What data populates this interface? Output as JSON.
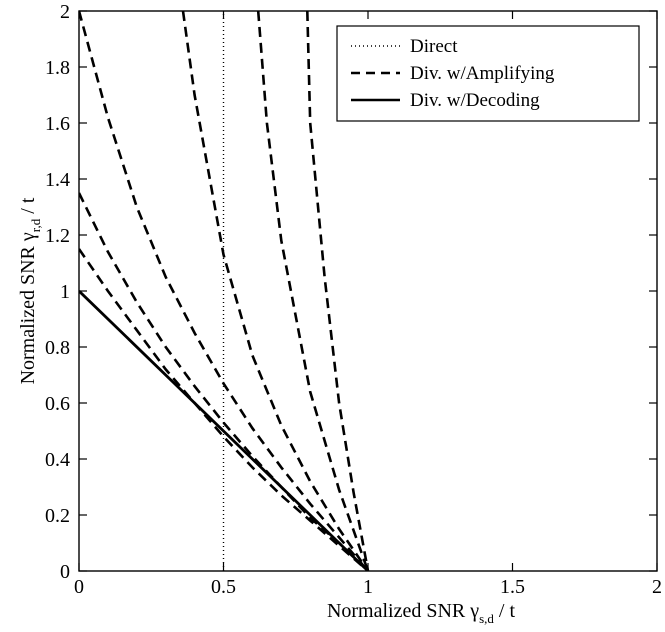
{
  "chart_data": {
    "type": "line",
    "xlabel": {
      "main": "Normalized SNR γ",
      "sub": "s,d",
      "tail": " / t"
    },
    "ylabel": {
      "main": "Normalized SNR γ",
      "sub": "r,d",
      "tail": " / t"
    },
    "xlim": [
      0,
      2
    ],
    "ylim": [
      0,
      2
    ],
    "xticks": [
      0,
      0.5,
      1,
      1.5,
      2
    ],
    "xtick_labels": [
      "0",
      "0.5",
      "1",
      "1.5",
      "2"
    ],
    "yticks": [
      0,
      0.2,
      0.4,
      0.6,
      0.8,
      1,
      1.2,
      1.4,
      1.6,
      1.8,
      2
    ],
    "ytick_labels": [
      "0",
      "0.2",
      "0.4",
      "0.6",
      "0.8",
      "1",
      "1.2",
      "1.4",
      "1.6",
      "1.8",
      "2"
    ],
    "grid": false,
    "legend_position": "top-right",
    "series": [
      {
        "name": "Direct",
        "style": "dotted",
        "color": "#000000",
        "points": [
          [
            0.5,
            0
          ],
          [
            0.5,
            2
          ]
        ]
      },
      {
        "name": "Div. w/Amplifying",
        "style": "dashed",
        "color": "#000000",
        "curves": [
          [
            [
              0,
              1.15
            ],
            [
              0.1,
              1.0
            ],
            [
              0.2,
              0.86
            ],
            [
              0.3,
              0.72
            ],
            [
              0.4,
              0.6
            ],
            [
              0.5,
              0.48
            ],
            [
              0.6,
              0.37
            ],
            [
              0.7,
              0.27
            ],
            [
              0.8,
              0.18
            ],
            [
              0.9,
              0.09
            ],
            [
              1,
              0
            ]
          ],
          [
            [
              0,
              1.35
            ],
            [
              0.1,
              1.14
            ],
            [
              0.2,
              0.96
            ],
            [
              0.3,
              0.8
            ],
            [
              0.4,
              0.66
            ],
            [
              0.5,
              0.53
            ],
            [
              0.6,
              0.41
            ],
            [
              0.7,
              0.3
            ],
            [
              0.8,
              0.19
            ],
            [
              0.9,
              0.1
            ],
            [
              1,
              0
            ]
          ],
          [
            [
              0,
              2.0
            ],
            [
              0.1,
              1.62
            ],
            [
              0.2,
              1.3
            ],
            [
              0.3,
              1.05
            ],
            [
              0.4,
              0.85
            ],
            [
              0.5,
              0.67
            ],
            [
              0.6,
              0.51
            ],
            [
              0.7,
              0.37
            ],
            [
              0.8,
              0.24
            ],
            [
              0.9,
              0.12
            ],
            [
              1,
              0
            ]
          ],
          [
            [
              0.36,
              2.0
            ],
            [
              0.4,
              1.7
            ],
            [
              0.5,
              1.13
            ],
            [
              0.6,
              0.77
            ],
            [
              0.7,
              0.52
            ],
            [
              0.8,
              0.32
            ],
            [
              0.9,
              0.15
            ],
            [
              1,
              0
            ]
          ],
          [
            [
              0.62,
              2.0
            ],
            [
              0.65,
              1.6
            ],
            [
              0.7,
              1.18
            ],
            [
              0.8,
              0.64
            ],
            [
              0.9,
              0.29
            ],
            [
              1,
              0
            ]
          ],
          [
            [
              0.79,
              2.0
            ],
            [
              0.8,
              1.6
            ],
            [
              0.85,
              1.05
            ],
            [
              0.9,
              0.6
            ],
            [
              0.95,
              0.28
            ],
            [
              1,
              0
            ]
          ]
        ]
      },
      {
        "name": "Div. w/Decoding",
        "style": "solid",
        "color": "#000000",
        "points": [
          [
            0,
            1
          ],
          [
            1,
            0
          ]
        ]
      }
    ]
  }
}
